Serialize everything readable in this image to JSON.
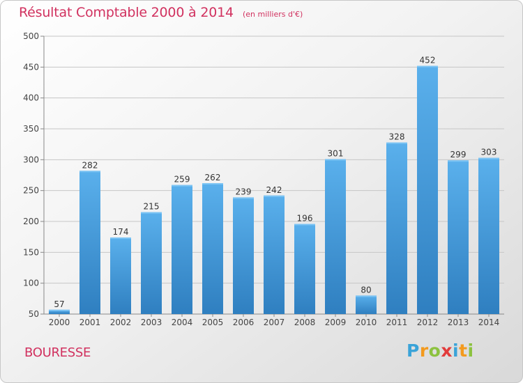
{
  "title": "Résultat Comptable 2000 à 2014",
  "subtitle": "(en milliers d'€)",
  "commune": "BOURESSE",
  "logo": {
    "letters": [
      "P",
      "r",
      "o",
      "x",
      "i",
      "t",
      "i"
    ],
    "colors": [
      "#3aa3d8",
      "#f39a1e",
      "#8cc23f",
      "#e23b3b",
      "#3aa3d8",
      "#f39a1e",
      "#8cc23f"
    ]
  },
  "colors": {
    "bar": "#4a9fe0",
    "title": "#d1315f"
  },
  "chart_data": {
    "type": "bar",
    "categories": [
      "2000",
      "2001",
      "2002",
      "2003",
      "2004",
      "2005",
      "2006",
      "2007",
      "2008",
      "2009",
      "2010",
      "2011",
      "2012",
      "2013",
      "2014"
    ],
    "values": [
      57,
      282,
      174,
      215,
      259,
      262,
      239,
      242,
      196,
      301,
      80,
      328,
      452,
      299,
      303
    ],
    "ylim": [
      50,
      500
    ],
    "yticks": [
      50,
      100,
      150,
      200,
      250,
      300,
      350,
      400,
      450,
      500
    ],
    "grid": true
  }
}
